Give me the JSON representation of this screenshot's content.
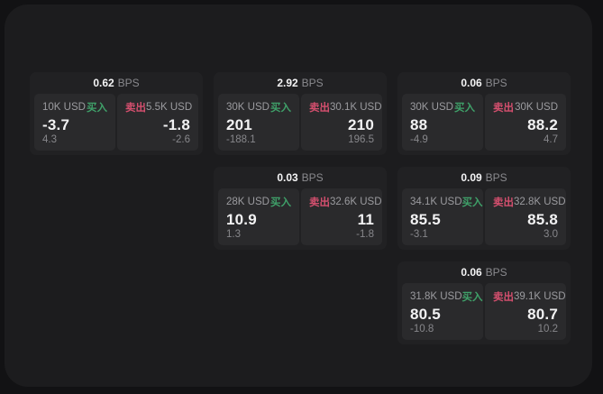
{
  "labels": {
    "bps_unit": "BPS",
    "buy": "买入",
    "sell": "卖出"
  },
  "colors": {
    "buy_green": "#3fa069",
    "sell_red": "#d44f6e",
    "page_bg": "#1c1c1e",
    "card_bg": "#212123",
    "panel_bg": "#2a2a2c"
  },
  "cards": [
    {
      "bps": "0.62",
      "buy": {
        "amount": "10K USD",
        "value": "-3.7",
        "sub": "4.3"
      },
      "sell": {
        "amount": "5.5K USD",
        "value": "-1.8",
        "sub": "-2.6"
      }
    },
    {
      "bps": "2.92",
      "buy": {
        "amount": "30K USD",
        "value": "201",
        "sub": "-188.1"
      },
      "sell": {
        "amount": "30.1K USD",
        "value": "210",
        "sub": "196.5"
      }
    },
    {
      "bps": "0.03",
      "buy": {
        "amount": "28K USD",
        "value": "10.9",
        "sub": "1.3"
      },
      "sell": {
        "amount": "32.6K USD",
        "value": "11",
        "sub": "-1.8"
      }
    },
    {
      "bps": "0.06",
      "buy": {
        "amount": "30K USD",
        "value": "88",
        "sub": "-4.9"
      },
      "sell": {
        "amount": "30K USD",
        "value": "88.2",
        "sub": "4.7"
      }
    },
    {
      "bps": "0.09",
      "buy": {
        "amount": "34.1K USD",
        "value": "85.5",
        "sub": "-3.1"
      },
      "sell": {
        "amount": "32.8K USD",
        "value": "85.8",
        "sub": "3.0"
      }
    },
    {
      "bps": "0.06",
      "buy": {
        "amount": "31.8K USD",
        "value": "80.5",
        "sub": "-10.8"
      },
      "sell": {
        "amount": "39.1K USD",
        "value": "80.7",
        "sub": "10.2"
      }
    }
  ]
}
